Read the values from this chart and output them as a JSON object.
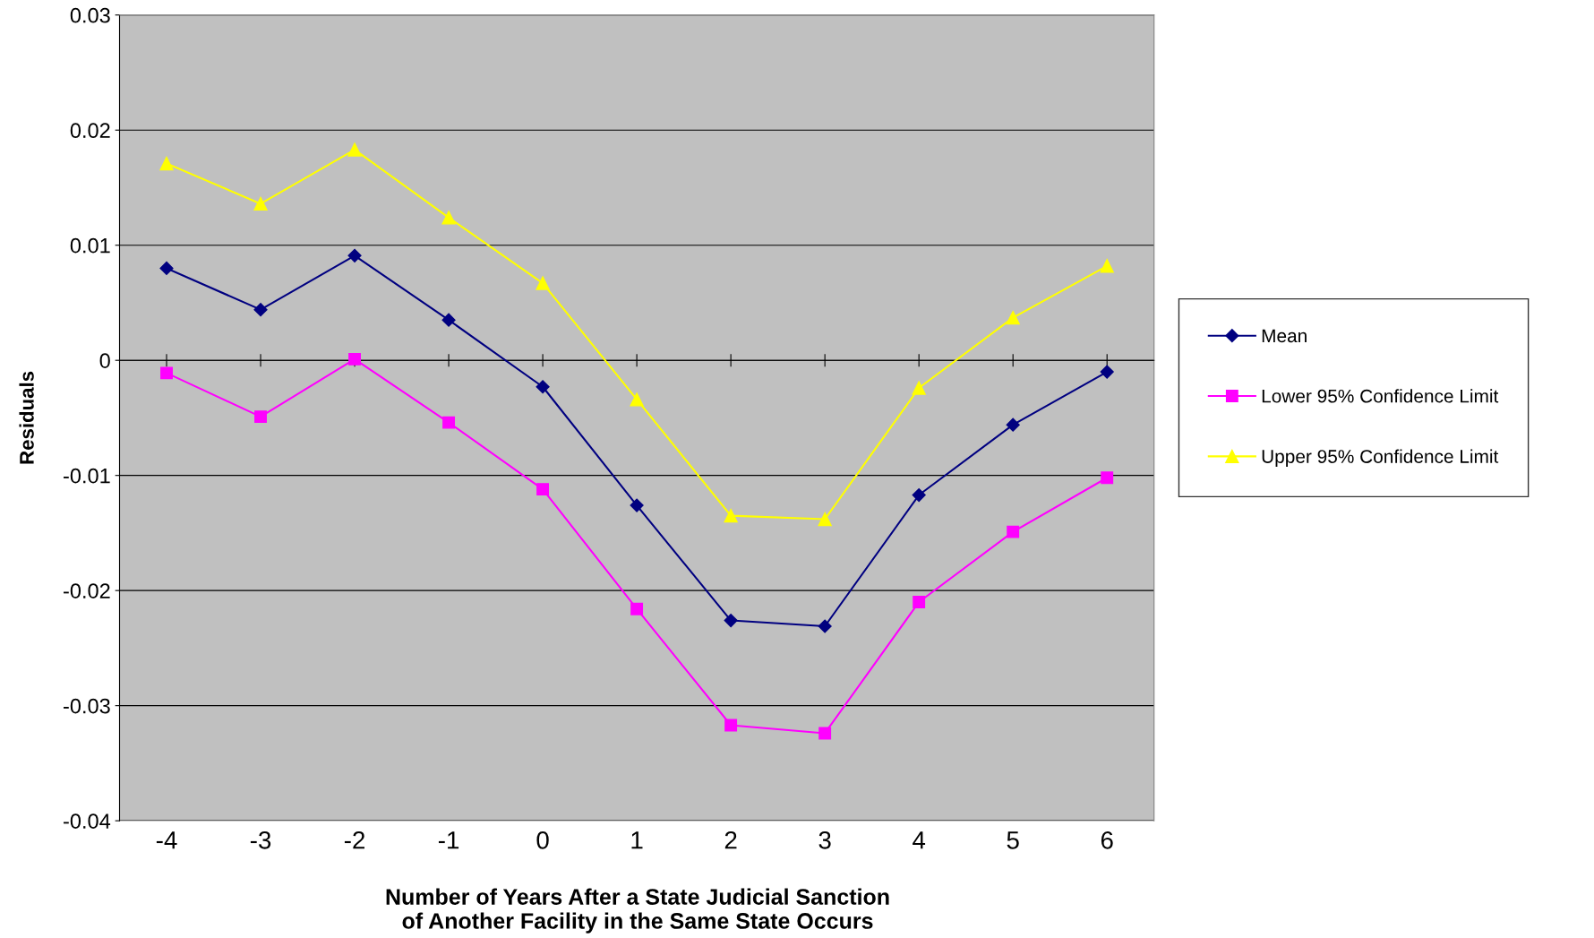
{
  "chart_data": {
    "type": "line",
    "xlabel": "Number of Years After a State Judicial Sanction\nof Another Facility in the Same State Occurs",
    "ylabel": "Residuals",
    "categories": [
      "-4",
      "-3",
      "-2",
      "-1",
      "0",
      "1",
      "2",
      "3",
      "4",
      "5",
      "6"
    ],
    "series": [
      {
        "name": "Mean",
        "color": "#000080",
        "marker": "diamond",
        "values": [
          0.008,
          0.0044,
          0.0091,
          0.0035,
          -0.0023,
          -0.0126,
          -0.0226,
          -0.0231,
          -0.0117,
          -0.0056,
          -0.001
        ]
      },
      {
        "name": "Lower 95% Confidence Limit",
        "color": "#ff00ff",
        "marker": "square",
        "values": [
          -0.0011,
          -0.0049,
          0.0001,
          -0.0054,
          -0.0112,
          -0.0216,
          -0.0317,
          -0.0324,
          -0.021,
          -0.0149,
          -0.0102
        ]
      },
      {
        "name": "Upper 95% Confidence Limit",
        "color": "#ffff00",
        "marker": "triangle",
        "values": [
          0.0171,
          0.0136,
          0.0183,
          0.0124,
          0.0067,
          -0.0034,
          -0.0135,
          -0.0138,
          -0.0024,
          0.0037,
          0.0082
        ]
      }
    ],
    "ylim": [
      -0.04,
      0.03
    ],
    "yticks": [
      -0.04,
      -0.03,
      -0.02,
      -0.01,
      0,
      0.01,
      0.02,
      0.03
    ],
    "grid": "y",
    "legend": "right",
    "line_style": "solid"
  }
}
